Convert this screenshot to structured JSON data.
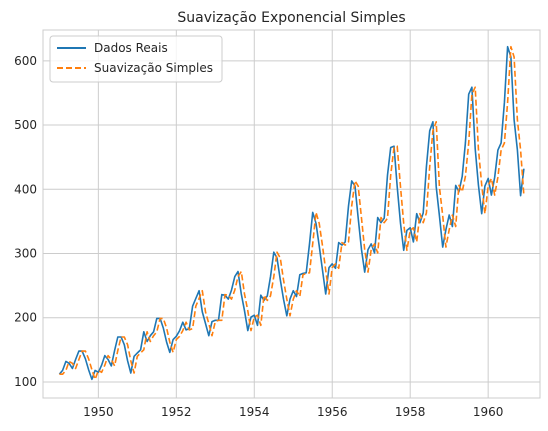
{
  "chart_data": {
    "type": "line",
    "title": "Suavização Exponencial Simples",
    "xlabel": "",
    "ylabel": "",
    "x_start": "1949-01",
    "x_frequency": "monthly",
    "xlim": [
      1948.58,
      1961.33
    ],
    "ylim": [
      75,
      648
    ],
    "x_ticks": [
      1950,
      1952,
      1954,
      1956,
      1958,
      1960
    ],
    "y_ticks": [
      100,
      200,
      300,
      400,
      500,
      600
    ],
    "grid": true,
    "legend_position": "top-left",
    "colors": {
      "series_0": "#1f77b4",
      "series_1": "#ff7f0e"
    },
    "series": [
      {
        "name": "Dados Reais",
        "style": "solid",
        "values": [
          112,
          118,
          132,
          129,
          121,
          135,
          148,
          148,
          136,
          119,
          104,
          118,
          115,
          126,
          141,
          135,
          125,
          149,
          170,
          170,
          158,
          133,
          114,
          140,
          145,
          150,
          178,
          163,
          172,
          178,
          199,
          199,
          184,
          162,
          146,
          166,
          171,
          180,
          193,
          181,
          183,
          218,
          230,
          242,
          209,
          191,
          172,
          194,
          196,
          196,
          236,
          235,
          229,
          243,
          264,
          272,
          237,
          211,
          180,
          201,
          204,
          188,
          235,
          227,
          234,
          264,
          302,
          293,
          259,
          229,
          203,
          229,
          242,
          233,
          267,
          269,
          270,
          315,
          364,
          347,
          312,
          274,
          237,
          278,
          284,
          277,
          317,
          313,
          318,
          374,
          413,
          405,
          355,
          306,
          271,
          306,
          315,
          301,
          356,
          348,
          355,
          422,
          465,
          467,
          404,
          347,
          305,
          336,
          340,
          318,
          362,
          348,
          363,
          435,
          491,
          505,
          404,
          359,
          310,
          337,
          360,
          342,
          406,
          396,
          420,
          472,
          548,
          559,
          463,
          407,
          362,
          405,
          417,
          391,
          419,
          461,
          472,
          535,
          622,
          606,
          508,
          461,
          390,
          432
        ]
      },
      {
        "name": "Suavização Simples",
        "style": "dashed",
        "values": [
          112,
          112,
          118,
          132,
          129,
          121,
          135,
          148,
          148,
          136,
          119,
          104,
          118,
          115,
          126,
          141,
          135,
          125,
          149,
          170,
          170,
          158,
          133,
          114,
          140,
          145,
          150,
          178,
          163,
          172,
          178,
          199,
          199,
          184,
          162,
          146,
          166,
          171,
          180,
          193,
          181,
          183,
          218,
          230,
          242,
          209,
          191,
          172,
          194,
          196,
          196,
          236,
          235,
          229,
          243,
          264,
          272,
          237,
          211,
          180,
          201,
          204,
          188,
          235,
          227,
          234,
          264,
          302,
          293,
          259,
          229,
          203,
          229,
          242,
          233,
          267,
          269,
          270,
          315,
          364,
          347,
          312,
          274,
          237,
          278,
          284,
          277,
          317,
          313,
          318,
          374,
          413,
          405,
          355,
          306,
          271,
          306,
          315,
          301,
          356,
          348,
          355,
          422,
          465,
          467,
          404,
          347,
          305,
          336,
          340,
          318,
          362,
          348,
          363,
          435,
          491,
          505,
          404,
          359,
          310,
          337,
          360,
          342,
          406,
          396,
          420,
          472,
          548,
          559,
          463,
          407,
          362,
          405,
          417,
          391,
          419,
          461,
          472,
          535,
          622,
          606,
          508,
          461,
          390
        ]
      }
    ]
  }
}
